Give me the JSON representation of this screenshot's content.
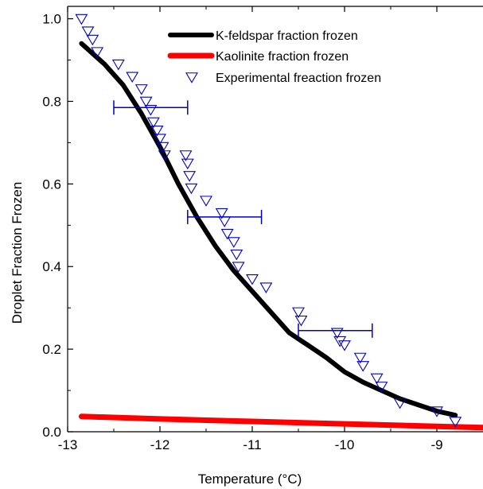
{
  "chart_data": {
    "type": "line",
    "xlabel": "Temperature (°C)",
    "ylabel": "Droplet Fraction Frozen",
    "xlim": [
      -13,
      -8.5
    ],
    "ylim": [
      0,
      1.03
    ],
    "x_ticks": [
      -13,
      -12,
      -11,
      -10,
      -9
    ],
    "x_tick_labels": [
      "-13",
      "-12",
      "-11",
      "-10",
      "-9"
    ],
    "y_ticks": [
      0.0,
      0.2,
      0.4,
      0.6,
      0.8,
      1.0
    ],
    "y_tick_labels": [
      "0.0",
      "0.2",
      "0.4",
      "0.6",
      "0.8",
      "1.0"
    ],
    "legend_position": "top-right",
    "series": [
      {
        "name": "K-feldspar fraction frozen",
        "kind": "line",
        "color": "#000000",
        "x": [
          -12.85,
          -12.6,
          -12.4,
          -12.2,
          -12.0,
          -11.8,
          -11.6,
          -11.4,
          -11.2,
          -11.0,
          -10.8,
          -10.6,
          -10.4,
          -10.2,
          -10.0,
          -9.8,
          -9.6,
          -9.4,
          -9.2,
          -9.0,
          -8.8
        ],
        "y": [
          0.94,
          0.89,
          0.84,
          0.77,
          0.69,
          0.6,
          0.52,
          0.45,
          0.39,
          0.34,
          0.29,
          0.24,
          0.21,
          0.18,
          0.145,
          0.12,
          0.1,
          0.08,
          0.065,
          0.05,
          0.04
        ]
      },
      {
        "name": "Kaolinite fraction frozen",
        "kind": "line",
        "color": "#ff0000",
        "x": [
          -12.85,
          -12.0,
          -11.0,
          -10.0,
          -9.0,
          -8.5
        ],
        "y": [
          0.037,
          0.031,
          0.025,
          0.019,
          0.013,
          0.01
        ]
      },
      {
        "name": "Experimental freaction frozen",
        "kind": "scatter",
        "marker": "down-triangle",
        "color": "#0000cc",
        "x": [
          -12.85,
          -12.78,
          -12.73,
          -12.68,
          -12.45,
          -12.3,
          -12.2,
          -12.15,
          -12.1,
          -12.07,
          -12.03,
          -12.0,
          -11.97,
          -11.95,
          -11.72,
          -11.7,
          -11.68,
          -11.66,
          -11.5,
          -11.33,
          -11.3,
          -11.27,
          -11.2,
          -11.17,
          -11.15,
          -11.0,
          -10.85,
          -10.5,
          -10.47,
          -10.08,
          -10.05,
          -10.0,
          -9.83,
          -9.8,
          -9.65,
          -9.6,
          -9.4,
          -9.0,
          -8.8
        ],
        "y": [
          1.0,
          0.97,
          0.95,
          0.92,
          0.89,
          0.86,
          0.83,
          0.8,
          0.78,
          0.75,
          0.73,
          0.71,
          0.69,
          0.67,
          0.67,
          0.65,
          0.62,
          0.59,
          0.56,
          0.53,
          0.51,
          0.48,
          0.46,
          0.43,
          0.4,
          0.37,
          0.35,
          0.29,
          0.27,
          0.24,
          0.22,
          0.21,
          0.18,
          0.16,
          0.13,
          0.11,
          0.07,
          0.05,
          0.025
        ]
      }
    ],
    "error_bars": [
      {
        "x": -12.1,
        "y": 0.785,
        "xmin": -12.5,
        "xmax": -11.7
      },
      {
        "x": -11.3,
        "y": 0.52,
        "xmin": -11.7,
        "xmax": -10.9
      },
      {
        "x": -10.1,
        "y": 0.245,
        "xmin": -10.5,
        "xmax": -9.7
      }
    ]
  }
}
